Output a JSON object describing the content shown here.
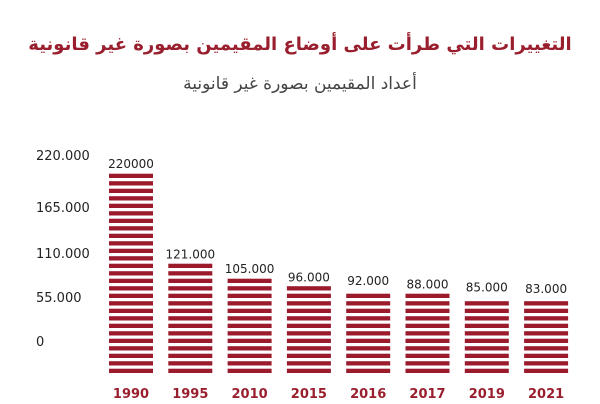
{
  "chart_data": {
    "type": "bar",
    "title": "التغييرات التي طرأت على أوضاع المقيمين بصورة غير قانونية",
    "subtitle": "أعداد المقيمين بصورة غير قانونية",
    "categories": [
      "1990",
      "1995",
      "2010",
      "2015",
      "2016",
      "2017",
      "2019",
      "2021"
    ],
    "values": [
      220000,
      121000,
      105000,
      96000,
      92000,
      88000,
      85000,
      83000
    ],
    "value_labels": [
      "220000",
      "121.000",
      "105.000",
      "96.000",
      "92.000",
      "88.000",
      "85.000",
      "83.000"
    ],
    "y_ticks": [
      0,
      55000,
      110000,
      165000,
      220000
    ],
    "y_tick_labels": [
      "0",
      "55.000",
      "110.000",
      "165.000",
      "220.000"
    ],
    "ylim": [
      0,
      220000
    ],
    "xlabel": "",
    "ylabel": "",
    "grid": false,
    "legend": "none",
    "colors": {
      "bar": "#9b1b2d",
      "bar_gap": "#ffffff",
      "category_label": "#9a1f2e",
      "axis_label": "#222222",
      "title": "#9a1f2e",
      "subtitle": "#444444"
    }
  }
}
